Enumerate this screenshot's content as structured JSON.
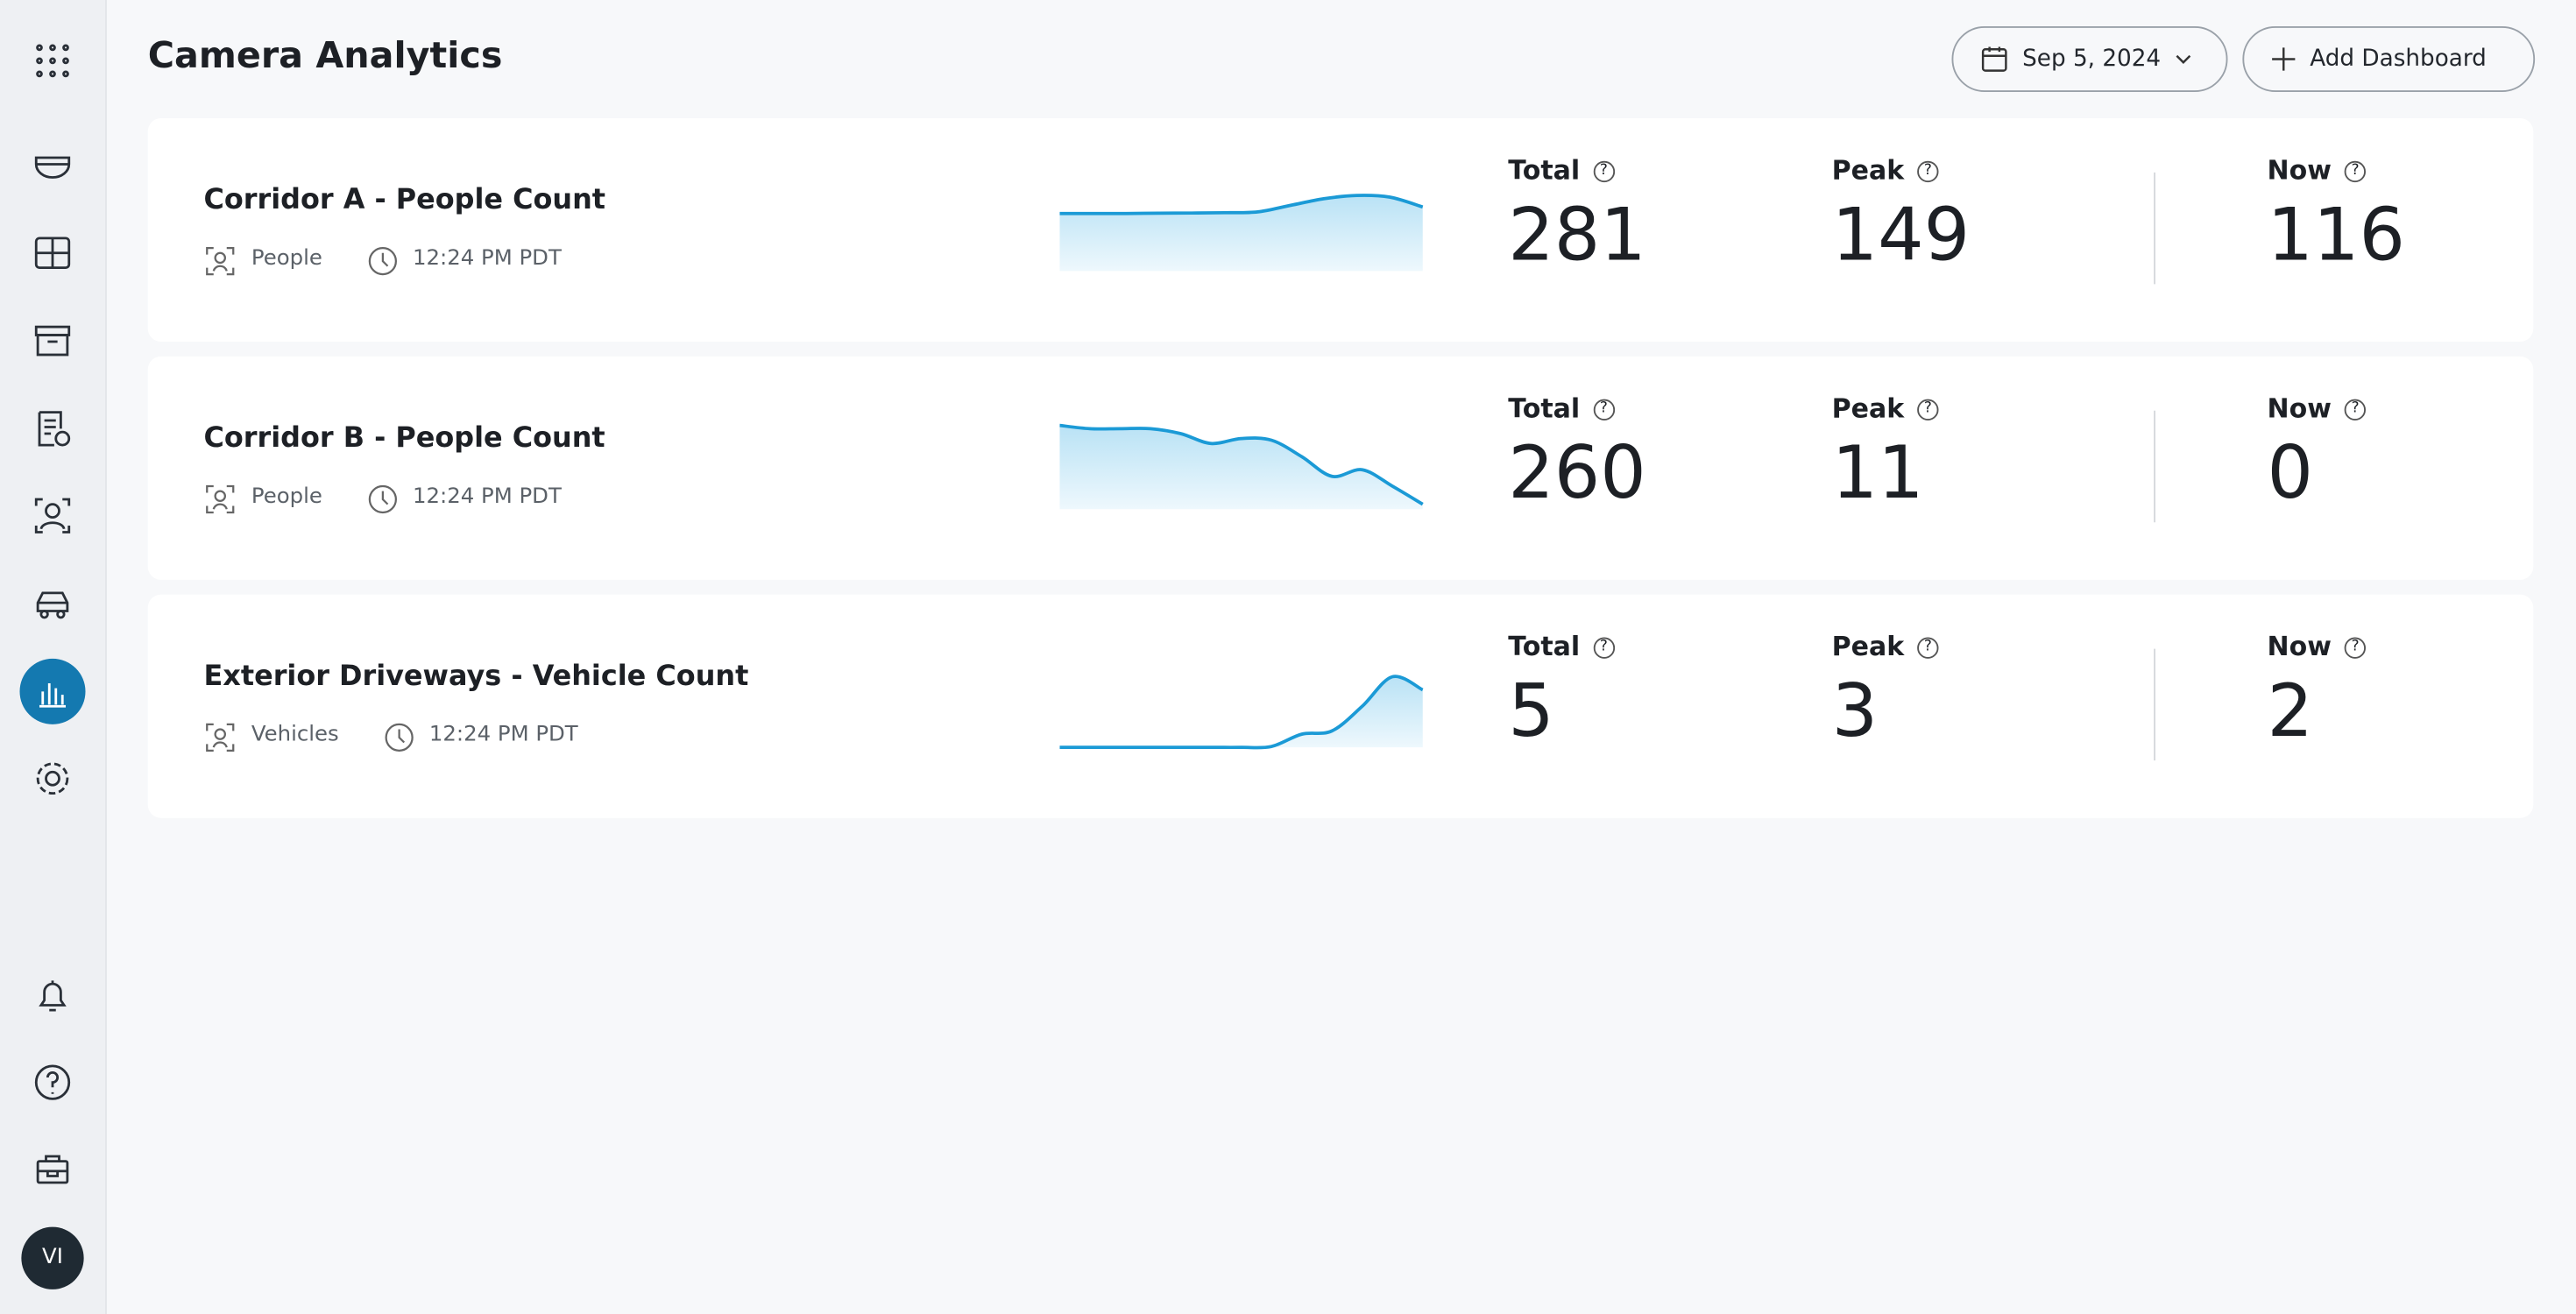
{
  "header": {
    "title": "Camera Analytics",
    "date": "Sep 5, 2024",
    "add_button": "Add Dashboard"
  },
  "user": {
    "initials": "VI"
  },
  "cards": [
    {
      "title": "Corridor A - People Count",
      "object": "People",
      "time": "12:24 PM PDT",
      "stats": [
        {
          "label": "Total",
          "value": 281
        },
        {
          "label": "Peak",
          "value": 149
        },
        {
          "label": "Now",
          "value": 116
        }
      ],
      "sparkline": [
        35,
        35,
        35,
        35.2,
        35.3,
        35.5,
        36,
        40,
        44,
        46,
        45,
        39
      ]
    },
    {
      "title": "Corridor B - People Count",
      "object": "People",
      "time": "12:24 PM PDT",
      "stats": [
        {
          "label": "Total",
          "value": 260
        },
        {
          "label": "Peak",
          "value": 11
        },
        {
          "label": "Now",
          "value": 0
        }
      ],
      "sparkline": [
        51,
        49,
        49,
        49,
        46,
        40,
        43,
        42,
        32,
        20,
        24,
        14,
        3
      ]
    },
    {
      "title": "Exterior Driveways - Vehicle Count",
      "object": "Vehicles",
      "time": "12:24 PM PDT",
      "stats": [
        {
          "label": "Total",
          "value": 5
        },
        {
          "label": "Peak",
          "value": 3
        },
        {
          "label": "Now",
          "value": 2
        }
      ],
      "sparkline": [
        0,
        0,
        0,
        0,
        0,
        0,
        0,
        0.5,
        8,
        10,
        25,
        43,
        35
      ]
    }
  ]
}
